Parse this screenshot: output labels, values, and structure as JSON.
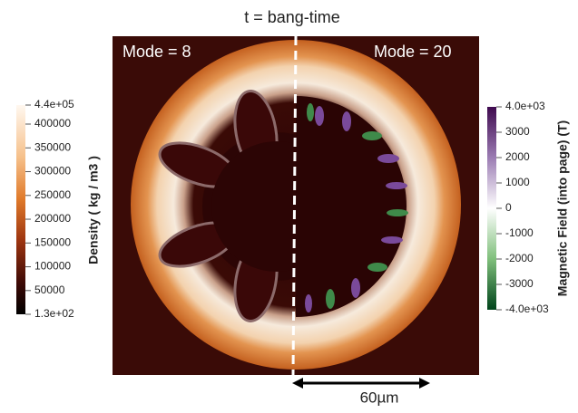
{
  "title": "t = bang-time",
  "panels": [
    {
      "label": "Mode = 8"
    },
    {
      "label": "Mode = 20"
    }
  ],
  "scale_bar": "60µm",
  "density_colorbar": {
    "label": "Density ( kg / m3 )",
    "lim": [
      130,
      440000
    ],
    "ticks": [
      {
        "value": 440000,
        "label": "4.4e+05"
      },
      400000,
      350000,
      300000,
      250000,
      200000,
      150000,
      100000,
      50000,
      {
        "value": 130,
        "label": "1.3e+02"
      }
    ]
  },
  "field_colorbar": {
    "label": "Magnetic Field (into page) (T)",
    "lim": [
      -4000,
      4000
    ],
    "ticks": [
      {
        "value": 4000,
        "label": "4.0e+03"
      },
      3000,
      2000,
      1000,
      0,
      -1000,
      -2000,
      -3000,
      {
        "value": -4000,
        "label": "-4.0e+03"
      }
    ]
  }
}
